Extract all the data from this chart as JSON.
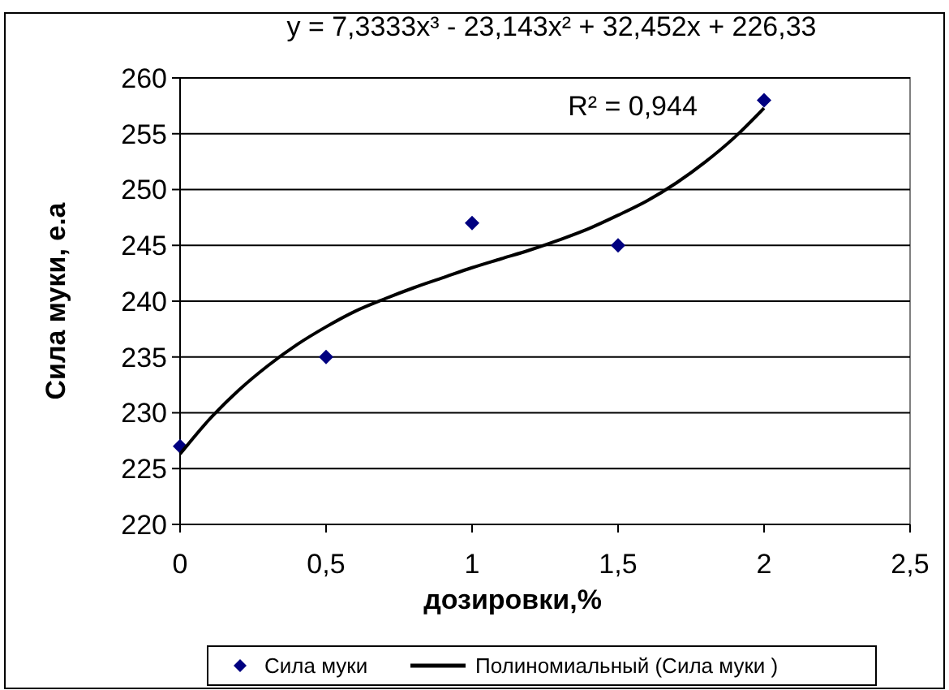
{
  "chart_data": {
    "type": "scatter",
    "xlabel": "дозировки,%",
    "ylabel": "Сила муки, е.а",
    "xlim": [
      0,
      2.5
    ],
    "xticks": [
      0,
      {
        "value": 0.5,
        "label": "0,5"
      },
      1,
      {
        "value": 1.5,
        "label": "1,5"
      },
      2,
      {
        "value": 2.5,
        "label": "2,5"
      }
    ],
    "ylim": [
      220,
      260
    ],
    "yticks": [
      220,
      225,
      230,
      235,
      240,
      245,
      250,
      255,
      260
    ],
    "grid": "y",
    "legend": "bottom",
    "annotations": [
      "y = 7,3333x³ - 23,143x² + 32,452x + 226,33",
      "R² = 0,944"
    ],
    "series": [
      {
        "name": "Сила муки",
        "color": "#000080",
        "marker": "diamond",
        "x": [
          0,
          0.5,
          1,
          1.5,
          2
        ],
        "values": [
          227,
          235,
          247,
          245,
          258
        ]
      },
      {
        "name": "Полиномиальный (Сила муки )",
        "type": "line",
        "color": "#000000",
        "marker": "none",
        "line_style": "solid",
        "x": [
          0,
          0.1,
          0.2,
          0.3,
          0.4,
          0.5,
          0.6,
          0.7,
          0.8,
          0.9,
          1,
          1.1,
          1.2,
          1.3,
          1.4,
          1.5,
          1.6,
          1.7,
          1.8,
          1.9,
          2
        ],
        "values": [
          226.3,
          229.4,
          232,
          234.2,
          236.1,
          237.7,
          239.1,
          240.2,
          241.2,
          242.1,
          243,
          243.8,
          244.6,
          245.5,
          246.5,
          247.7,
          249,
          250.6,
          252.5,
          254.7,
          257.3
        ]
      }
    ]
  }
}
